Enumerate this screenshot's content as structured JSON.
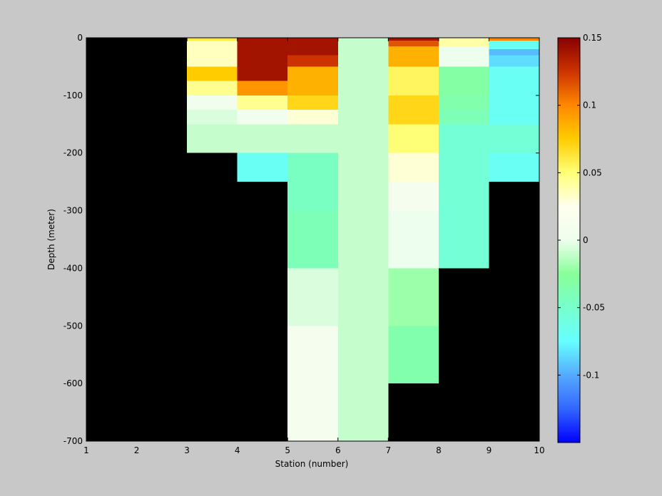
{
  "chart_data": {
    "type": "heatmap",
    "title": "",
    "xlabel": "Station (number)",
    "ylabel": "Depth (meter)",
    "xlim": [
      1,
      10
    ],
    "ylim": [
      -700,
      0
    ],
    "xticks": [
      "1",
      "2",
      "3",
      "4",
      "5",
      "6",
      "7",
      "8",
      "9",
      "10"
    ],
    "yticks": [
      "0",
      "-100",
      "-200",
      "-300",
      "-400",
      "-500",
      "-600",
      "-700"
    ],
    "background_color": "#000000",
    "colorbar": {
      "range": [
        -0.15,
        0.15
      ],
      "ticks": [
        "0.15",
        "0.1",
        "0.05",
        "0",
        "-0.05",
        "-0.1"
      ],
      "tick_values": [
        0.15,
        0.1,
        0.05,
        0,
        -0.05,
        -0.1
      ],
      "colormap": "jet-white-center",
      "colors_low_to_high": [
        "#0000ff",
        "#3366ff",
        "#55aaff",
        "#66ffff",
        "#77ffcc",
        "#88ff99",
        "#eefeee",
        "#ffffee",
        "#ffff77",
        "#ffcc00",
        "#ff8800",
        "#cc3300",
        "#880000"
      ]
    },
    "cells": [
      {
        "x0": 3,
        "x1": 4,
        "y0": -5,
        "y1": 0,
        "value": 0.06
      },
      {
        "x0": 3,
        "x1": 4,
        "y0": -50,
        "y1": -5,
        "value": 0.035
      },
      {
        "x0": 3,
        "x1": 4,
        "y0": -75,
        "y1": -50,
        "value": 0.075
      },
      {
        "x0": 3,
        "x1": 4,
        "y0": -100,
        "y1": -75,
        "value": 0.045
      },
      {
        "x0": 3,
        "x1": 4,
        "y0": -125,
        "y1": -100,
        "value": 0.005
      },
      {
        "x0": 3,
        "x1": 4,
        "y0": -150,
        "y1": -125,
        "value": -0.005
      },
      {
        "x0": 3,
        "x1": 4,
        "y0": -200,
        "y1": -150,
        "value": -0.01
      },
      {
        "x0": 4,
        "x1": 5,
        "y0": -75,
        "y1": 0,
        "value": 0.14
      },
      {
        "x0": 4,
        "x1": 5,
        "y0": -100,
        "y1": -75,
        "value": 0.095
      },
      {
        "x0": 4,
        "x1": 5,
        "y0": -125,
        "y1": -100,
        "value": 0.045
      },
      {
        "x0": 4,
        "x1": 5,
        "y0": -150,
        "y1": -125,
        "value": 0.005
      },
      {
        "x0": 4,
        "x1": 5,
        "y0": -200,
        "y1": -150,
        "value": -0.01
      },
      {
        "x0": 4,
        "x1": 5,
        "y0": -250,
        "y1": -200,
        "value": -0.07
      },
      {
        "x0": 5,
        "x1": 6,
        "y0": -30,
        "y1": 0,
        "value": 0.14
      },
      {
        "x0": 5,
        "x1": 6,
        "y0": -50,
        "y1": -30,
        "value": 0.125
      },
      {
        "x0": 5,
        "x1": 6,
        "y0": -100,
        "y1": -50,
        "value": 0.085
      },
      {
        "x0": 5,
        "x1": 6,
        "y0": -125,
        "y1": -100,
        "value": 0.07
      },
      {
        "x0": 5,
        "x1": 6,
        "y0": -150,
        "y1": -125,
        "value": 0.03
      },
      {
        "x0": 5,
        "x1": 6,
        "y0": -200,
        "y1": -150,
        "value": -0.01
      },
      {
        "x0": 5,
        "x1": 6,
        "y0": -300,
        "y1": -200,
        "value": -0.045
      },
      {
        "x0": 5,
        "x1": 6,
        "y0": -400,
        "y1": -300,
        "value": -0.04
      },
      {
        "x0": 5,
        "x1": 6,
        "y0": -500,
        "y1": -400,
        "value": -0.005
      },
      {
        "x0": 5,
        "x1": 6,
        "y0": -700,
        "y1": -500,
        "value": 0.01
      },
      {
        "x0": 6,
        "x1": 7,
        "y0": -700,
        "y1": 0,
        "value": -0.01
      },
      {
        "x0": 7,
        "x1": 8,
        "y0": -5,
        "y1": 0,
        "value": 0.14
      },
      {
        "x0": 7,
        "x1": 8,
        "y0": -15,
        "y1": -5,
        "value": 0.115
      },
      {
        "x0": 7,
        "x1": 8,
        "y0": -50,
        "y1": -15,
        "value": 0.085
      },
      {
        "x0": 7,
        "x1": 8,
        "y0": -100,
        "y1": -50,
        "value": 0.055
      },
      {
        "x0": 7,
        "x1": 8,
        "y0": -150,
        "y1": -100,
        "value": 0.07
      },
      {
        "x0": 7,
        "x1": 8,
        "y0": -200,
        "y1": -150,
        "value": 0.05
      },
      {
        "x0": 7,
        "x1": 8,
        "y0": -250,
        "y1": -200,
        "value": 0.03
      },
      {
        "x0": 7,
        "x1": 8,
        "y0": -300,
        "y1": -250,
        "value": 0.01
      },
      {
        "x0": 7,
        "x1": 8,
        "y0": -400,
        "y1": -300,
        "value": 0.0
      },
      {
        "x0": 7,
        "x1": 8,
        "y0": -500,
        "y1": -400,
        "value": -0.02
      },
      {
        "x0": 7,
        "x1": 8,
        "y0": -600,
        "y1": -500,
        "value": -0.035
      },
      {
        "x0": 8,
        "x1": 9,
        "y0": -15,
        "y1": 0,
        "value": 0.04
      },
      {
        "x0": 8,
        "x1": 9,
        "y0": -50,
        "y1": -15,
        "value": 0.0
      },
      {
        "x0": 8,
        "x1": 9,
        "y0": -100,
        "y1": -50,
        "value": -0.03
      },
      {
        "x0": 8,
        "x1": 9,
        "y0": -125,
        "y1": -100,
        "value": -0.035
      },
      {
        "x0": 8,
        "x1": 9,
        "y0": -150,
        "y1": -125,
        "value": -0.04
      },
      {
        "x0": 8,
        "x1": 9,
        "y0": -400,
        "y1": -150,
        "value": -0.055
      },
      {
        "x0": 9,
        "x1": 10,
        "y0": -5,
        "y1": 0,
        "value": 0.1
      },
      {
        "x0": 9,
        "x1": 10,
        "y0": -20,
        "y1": -5,
        "value": -0.07
      },
      {
        "x0": 9,
        "x1": 10,
        "y0": -30,
        "y1": -20,
        "value": -0.095
      },
      {
        "x0": 9,
        "x1": 10,
        "y0": -50,
        "y1": -30,
        "value": -0.085
      },
      {
        "x0": 9,
        "x1": 10,
        "y0": -150,
        "y1": -50,
        "value": -0.07
      },
      {
        "x0": 9,
        "x1": 10,
        "y0": -200,
        "y1": -150,
        "value": -0.055
      },
      {
        "x0": 9,
        "x1": 10,
        "y0": -250,
        "y1": -200,
        "value": -0.07
      }
    ]
  }
}
